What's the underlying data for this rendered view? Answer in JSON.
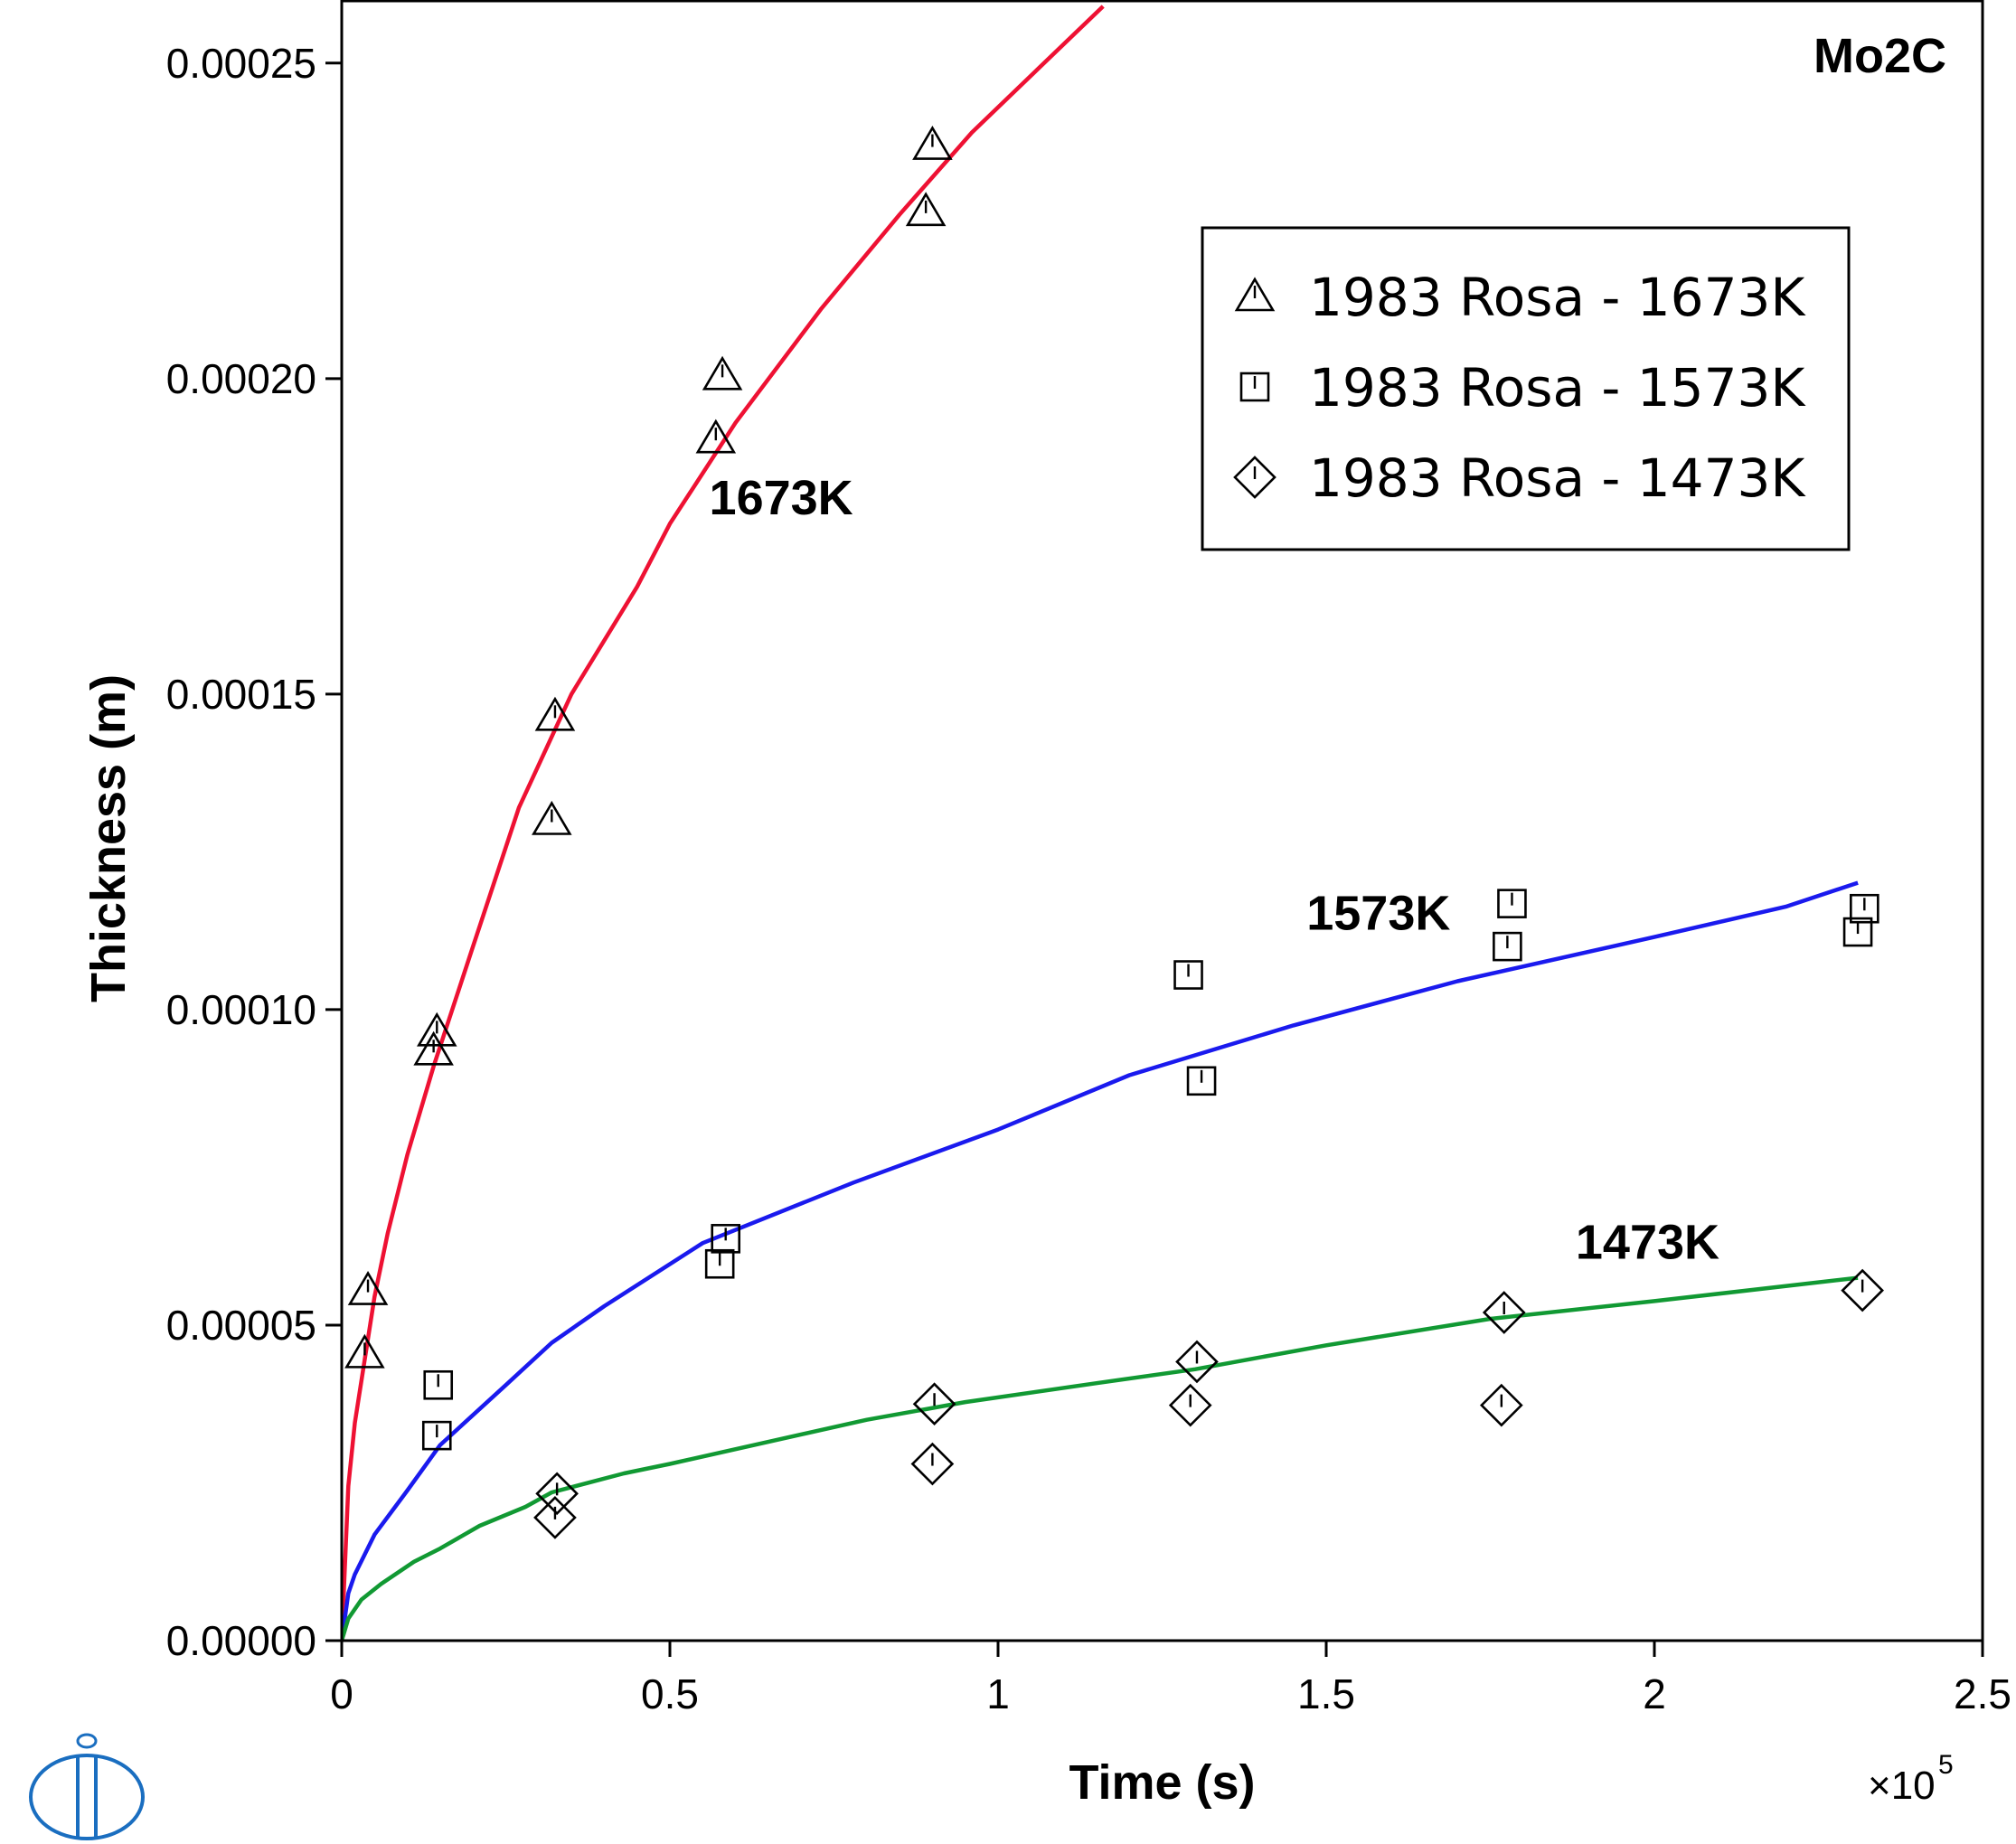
{
  "chart_data": {
    "type": "scatter",
    "title": "Mo2C",
    "xlabel": "Time (s)",
    "ylabel": "Thickness (m)",
    "x_multiplier_label": "×10",
    "x_multiplier_exp": "5",
    "xlim": [
      0,
      250000
    ],
    "ylim": [
      0,
      0.00026
    ],
    "x_ticks": [
      0,
      50000,
      100000,
      150000,
      200000,
      250000
    ],
    "x_tick_labels": [
      "0",
      "0.5",
      "1",
      "1.5",
      "2",
      "2.5"
    ],
    "y_ticks": [
      0,
      5e-05,
      0.0001,
      0.00015,
      0.0002,
      0.00025
    ],
    "y_tick_labels": [
      "0.00000",
      "0.00005",
      "0.00010",
      "0.00015",
      "0.00020",
      "0.00025"
    ],
    "grid": false,
    "legend_position": "top-right",
    "lines": [
      {
        "label": "1673K",
        "color": "#ee1133",
        "x": [
          0,
          1000,
          2000,
          5000,
          7000,
          10000,
          14000,
          20000,
          27000,
          35000,
          45000,
          50000,
          60000,
          73000,
          85000,
          96000,
          106000,
          116000
        ],
        "y": [
          0,
          2.45e-05,
          3.45e-05,
          5.45e-05,
          6.45e-05,
          7.7e-05,
          9.1e-05,
          0.00011,
          0.000132,
          0.00015,
          0.000167,
          0.000177,
          0.000193,
          0.000211,
          0.000226,
          0.000239,
          0.000249,
          0.000259
        ]
      },
      {
        "label": "1573K",
        "color": "#1a1aee",
        "x": [
          0,
          1000,
          2000,
          5000,
          8000,
          10000,
          15000,
          25000,
          32000,
          40000,
          55000,
          78000,
          100000,
          120000,
          145000,
          170000,
          200000,
          220000,
          231000
        ],
        "y": [
          0,
          7.5e-06,
          1.05e-05,
          1.68e-05,
          2.1e-05,
          2.38e-05,
          3.1e-05,
          4.05e-05,
          4.72e-05,
          5.3e-05,
          6.3e-05,
          7.26e-05,
          8.1e-05,
          8.96e-05,
          9.75e-05,
          0.0001045,
          0.0001115,
          0.0001163,
          0.0001201
        ]
      },
      {
        "label": "1473K",
        "color": "#119933",
        "x": [
          0,
          1000,
          3000,
          6000,
          11000,
          15000,
          21000,
          28000,
          32000,
          43000,
          50000,
          65000,
          80000,
          95000,
          115000,
          130000,
          150000,
          175000,
          200000,
          231000
        ],
        "y": [
          0,
          3.5e-06,
          6.5e-06,
          9e-06,
          1.25e-05,
          1.46e-05,
          1.82e-05,
          2.12e-05,
          2.35e-05,
          2.65e-05,
          2.8e-05,
          3.15e-05,
          3.5e-05,
          3.78e-05,
          4.08e-05,
          4.3e-05,
          4.68e-05,
          5.1e-05,
          5.38e-05,
          5.75e-05
        ]
      }
    ],
    "series": [
      {
        "name": "1983 Rosa - 1673K",
        "marker": "triangle",
        "x": [
          3500,
          4000,
          14000,
          14500,
          32000,
          32500,
          57000,
          58000,
          89000,
          90000
        ],
        "y": [
          4.55e-05,
          5.55e-05,
          9.35e-05,
          9.65e-05,
          0.00013,
          0.0001465,
          0.0001905,
          0.0002005,
          0.0002265,
          0.000237
        ]
      },
      {
        "name": "1983 Rosa - 1573K",
        "marker": "square",
        "x": [
          14500,
          14700,
          57600,
          58500,
          129000,
          131000,
          177600,
          178300,
          231000,
          232000
        ],
        "y": [
          3.25e-05,
          4.05e-05,
          5.97e-05,
          6.37e-05,
          0.0001055,
          8.87e-05,
          0.00011,
          0.0001168,
          0.0001123,
          0.000116
        ]
      },
      {
        "name": "1983 Rosa - 1473K",
        "marker": "diamond",
        "x": [
          32500,
          32800,
          90000,
          90300,
          129300,
          130300,
          176700,
          177100,
          231700
        ],
        "y": [
          1.95e-05,
          2.33e-05,
          2.8e-05,
          3.75e-05,
          3.73e-05,
          4.42e-05,
          3.73e-05,
          5.2e-05,
          5.55e-05
        ]
      }
    ],
    "annotations": [
      {
        "text": "1673K",
        "x": 56000,
        "y": 0.0001785
      },
      {
        "text": "1573K",
        "x": 147000,
        "y": 0.0001127
      },
      {
        "text": "1473K",
        "x": 188000,
        "y": 6.05e-05
      }
    ]
  },
  "logo": {
    "color": "#1a6ec0",
    "name": "logo-icon"
  }
}
